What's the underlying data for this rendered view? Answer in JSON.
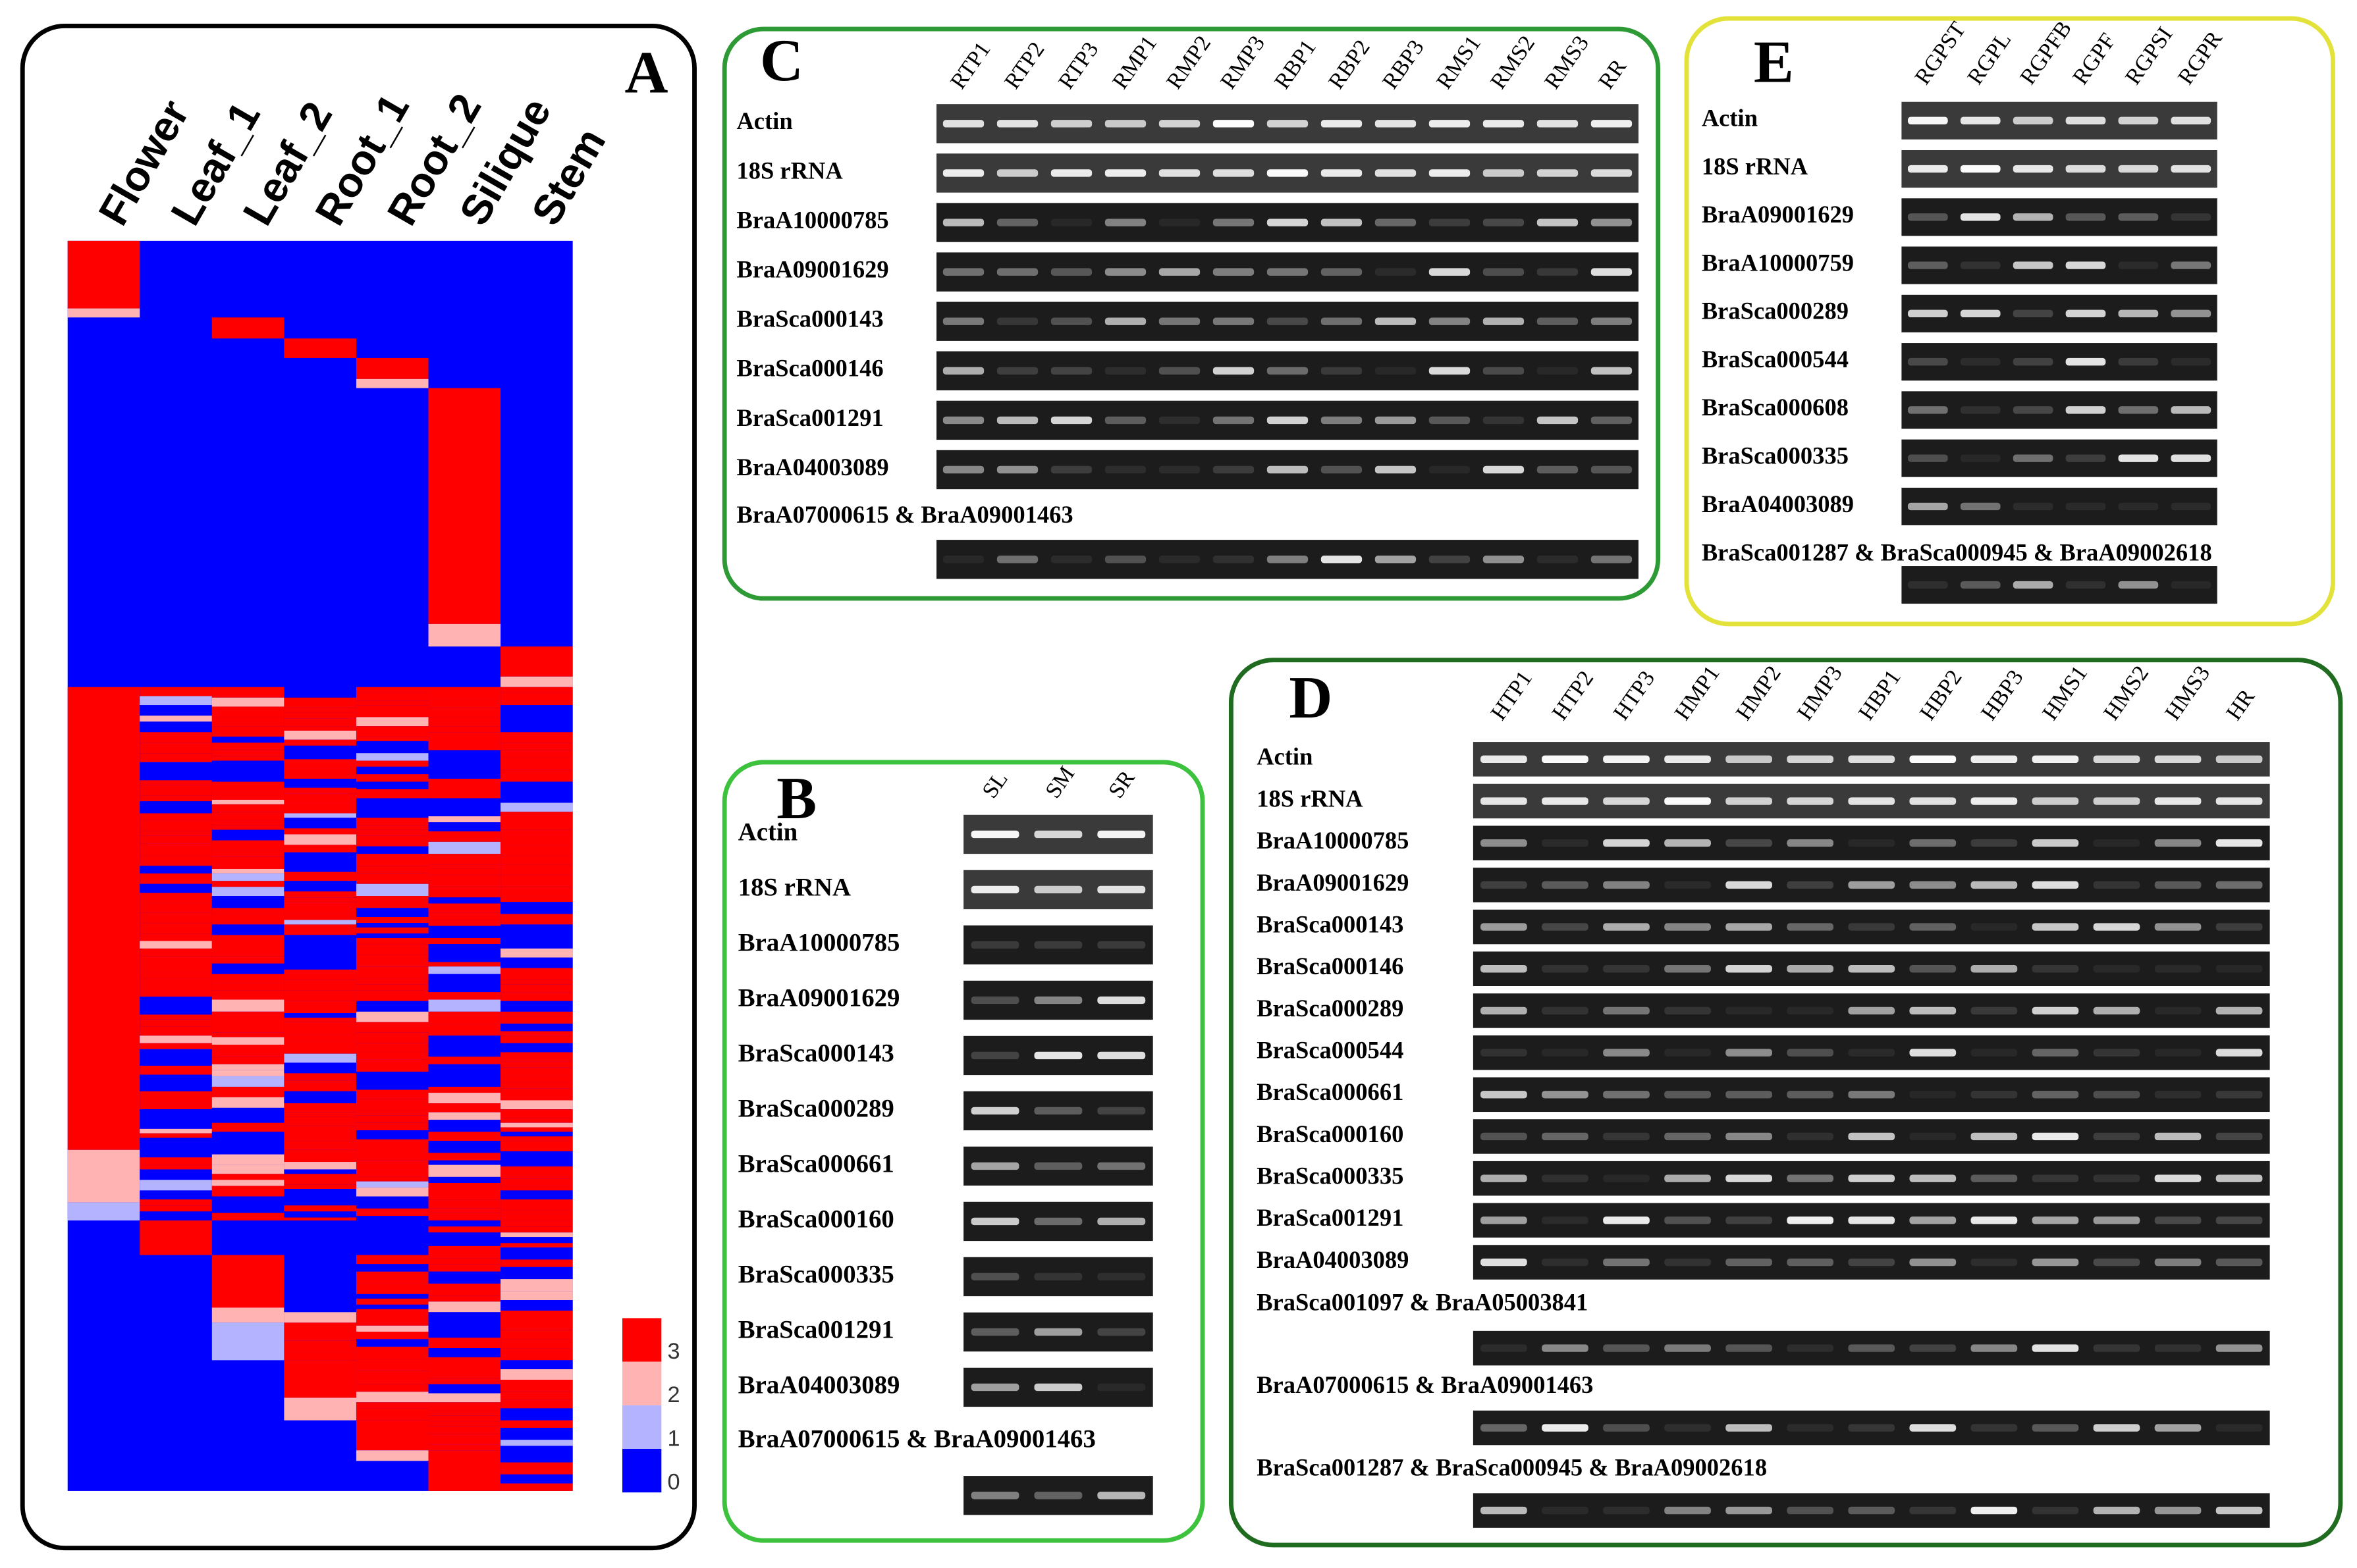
{
  "panel_a": {
    "label": "A",
    "columns": [
      "Flower",
      "Leaf_1",
      "Leaf_2",
      "Root_1",
      "Root_2",
      "Silique",
      "Stem"
    ],
    "legend": [
      3,
      2,
      1,
      0
    ]
  },
  "panel_b": {
    "label": "B",
    "columns": [
      "SL",
      "SM",
      "SR"
    ],
    "rows": [
      "Actin",
      "18S rRNA",
      "BraA10000785",
      "BraA09001629",
      "BraSca000143",
      "BraSca000289",
      "BraSca000661",
      "BraSca000160",
      "BraSca000335",
      "BraSca001291",
      "BraA04003089"
    ],
    "paired_rows": [
      "BraA07000615 & BraA09001463"
    ]
  },
  "panel_c": {
    "label": "C",
    "columns": [
      "RTP1",
      "RTP2",
      "RTP3",
      "RMP1",
      "RMP2",
      "RMP3",
      "RBP1",
      "RBP2",
      "RBP3",
      "RMS1",
      "RMS2",
      "RMS3",
      "RR"
    ],
    "rows": [
      "Actin",
      "18S rRNA",
      "BraA10000785",
      "BraA09001629",
      "BraSca000143",
      "BraSca000146",
      "BraSca001291",
      "BraA04003089"
    ],
    "paired_rows": [
      "BraA07000615 & BraA09001463"
    ]
  },
  "panel_d": {
    "label": "D",
    "columns": [
      "HTP1",
      "HTP2",
      "HTP3",
      "HMP1",
      "HMP2",
      "HMP3",
      "HBP1",
      "HBP2",
      "HBP3",
      "HMS1",
      "HMS2",
      "HMS3",
      "HR"
    ],
    "rows": [
      "Actin",
      "18S rRNA",
      "BraA10000785",
      "BraA09001629",
      "BraSca000143",
      "BraSca000146",
      "BraSca000289",
      "BraSca000544",
      "BraSca000661",
      "BraSca000160",
      "BraSca000335",
      "BraSca001291",
      "BraA04003089"
    ],
    "paired_rows": [
      "BraSca001097 & BraA05003841",
      "BraA07000615 & BraA09001463",
      "BraSca001287 & BraSca000945 & BraA09002618"
    ]
  },
  "panel_e": {
    "label": "E",
    "columns": [
      "RGPST",
      "RGPL",
      "RGPFB",
      "RGPF",
      "RGPSI",
      "RGPR"
    ],
    "rows": [
      "Actin",
      "18S rRNA",
      "BraA09001629",
      "BraA10000759",
      "BraSca000289",
      "BraSca000544",
      "BraSca000608",
      "BraSca000335",
      "BraA04003089"
    ],
    "paired_rows": [
      "BraSca001287 & BraSca000945 & BraA09002618"
    ]
  }
}
